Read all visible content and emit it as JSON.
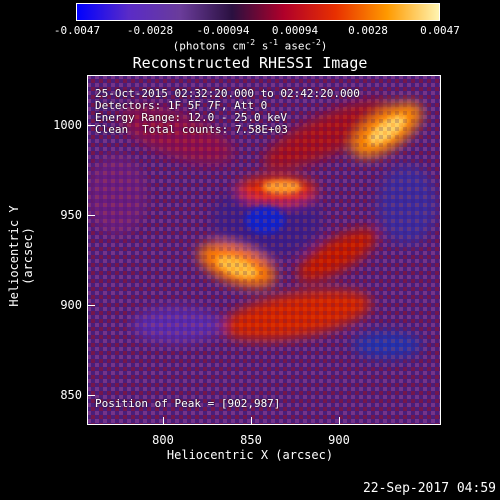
{
  "colorbar": {
    "ticks": [
      "-0.0047",
      "-0.0028",
      "-0.00094",
      "0.00094",
      "0.0028",
      "0.0047"
    ],
    "units_main": "(photons cm",
    "units_exp1": "-2",
    "units_mid": " s",
    "units_exp2": "-1",
    "units_mid2": " asec",
    "units_exp3": "-2",
    "units_end": ")",
    "colors": [
      "#0000ff",
      "#5a2bc7",
      "#6a3c9a",
      "#2a1040",
      "#b0002a",
      "#e83000",
      "#ff9a00",
      "#fff4b0"
    ]
  },
  "title": "Reconstructed RHESSI Image",
  "annotations": {
    "time": "25-Oct-2015 02:32:20.000 to 02:42:20.000",
    "detectors": "Detectors: 1F 5F 7F, Att 0",
    "energy": "Energy Range: 12.0 - 25.0 keV",
    "method": "Clean",
    "counts": "Total counts: 7.58E+03",
    "peak": "Position of Peak = [902,987]"
  },
  "axes": {
    "xlabel": "Heliocentric X (arcsec)",
    "ylabel": "Heliocentric Y (arcsec)",
    "xticks": [
      "800",
      "850",
      "900"
    ],
    "yticks": [
      "1000",
      "950",
      "900",
      "850"
    ],
    "xrange": [
      760,
      945
    ],
    "yrange": [
      832,
      1017
    ]
  },
  "footer": "22-Sep-2017 04:59"
}
